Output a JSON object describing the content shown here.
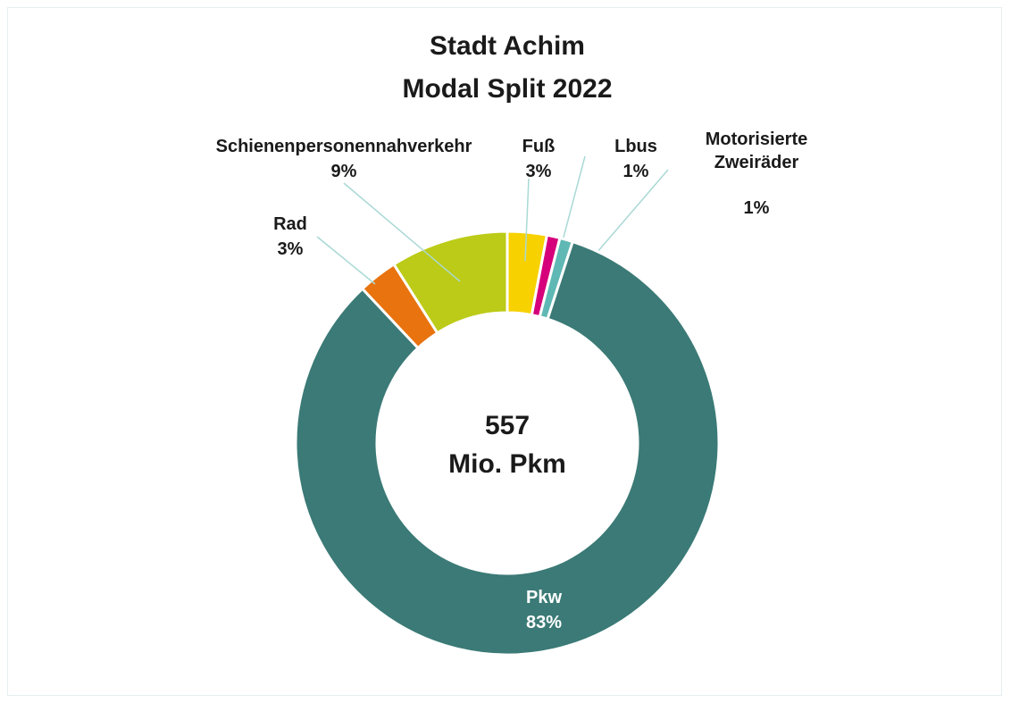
{
  "chart_data": {
    "type": "donut",
    "title": "Stadt Achim",
    "subtitle": "Modal Split 2022",
    "categories": [
      "Fuß",
      "Lbus",
      "Motorisierte Zweiräder",
      "Pkw",
      "Rad",
      "Schienenpersonennahverkehr"
    ],
    "values": [
      3,
      1,
      1,
      83,
      3,
      9
    ],
    "value_labels": [
      "3%",
      "1%",
      "1%",
      "83%",
      "3%",
      "9%"
    ],
    "colors": [
      "#f7d100",
      "#d6007a",
      "#5fb8b4",
      "#3b7a76",
      "#e8730f",
      "#bccb17"
    ],
    "center_value": 557,
    "center_label": "Mio. Pkm"
  }
}
